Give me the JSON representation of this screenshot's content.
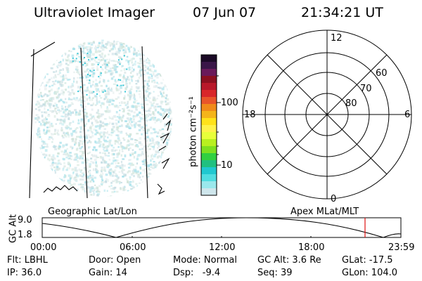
{
  "header": {
    "instrument": "Ultraviolet Imager",
    "date": "07 Jun 07",
    "time": "21:34:21 UT"
  },
  "colorbar": {
    "axis_label": "photon cm⁻²s⁻¹",
    "ticks": [
      "100",
      "10"
    ],
    "colors": [
      "#1b0a26",
      "#3a1648",
      "#6a1a5a",
      "#8b1020",
      "#b8182a",
      "#d8262a",
      "#e8552a",
      "#f08a1a",
      "#f4b41a",
      "#ffe21a",
      "#fff24a",
      "#e8ff3a",
      "#b8f020",
      "#7ee020",
      "#30d040",
      "#20c080",
      "#20c8d0",
      "#50dde0",
      "#9ae8ec",
      "#cfe6ec"
    ]
  },
  "polar": {
    "top_label": "12",
    "bottom_label": "0",
    "left_label": "18",
    "right_label": "6",
    "lat_labels": [
      "60",
      "70",
      "80"
    ]
  },
  "timeline": {
    "left_label": "Geographic Lat/Lon",
    "right_label": "Apex MLat/MLT",
    "y_axis_label": "GC Alt",
    "y_ticks": [
      "9.0",
      "1.8"
    ],
    "x_ticks": [
      "00:00",
      "06:00",
      "12:00",
      "18:00",
      "23:59"
    ],
    "marker_color": "#e01010"
  },
  "info": {
    "flt": "Flt: LBHL",
    "door": "Door: Open",
    "mode": "Mode: Normal",
    "gc_alt": "GC Alt: 3.6 Re",
    "glat": "GLat: -17.5",
    "ip": "IP: 36.0",
    "gain": "Gain: 14",
    "dsp": "Dsp:   -9.4",
    "seq": "Seq: 39",
    "glon": "GLon: 104.0"
  }
}
